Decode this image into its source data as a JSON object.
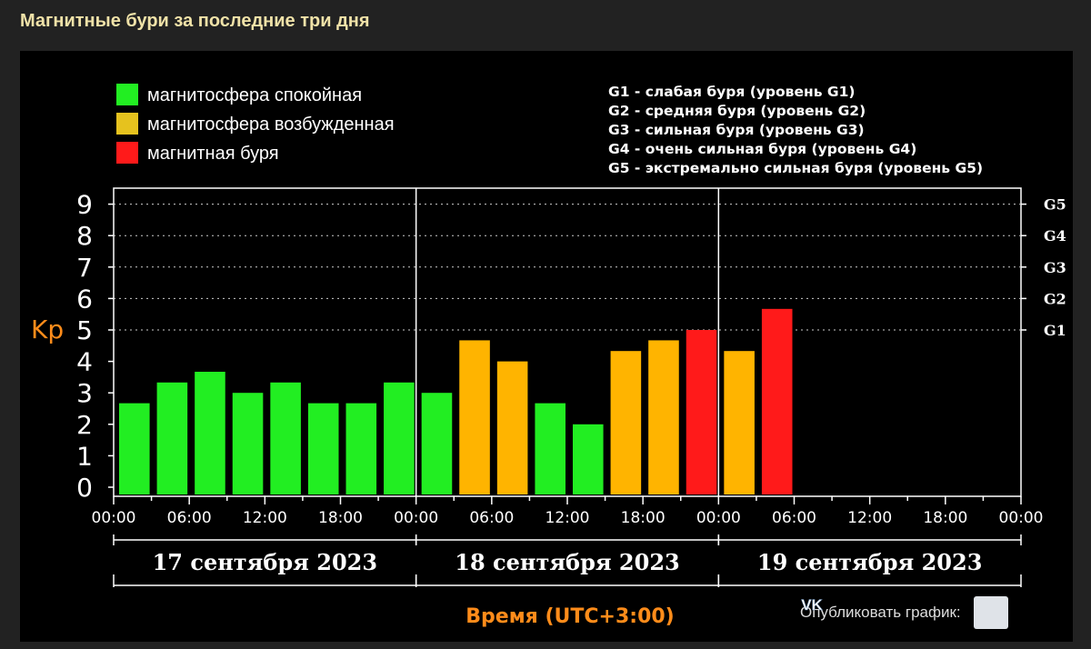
{
  "page": {
    "title": "Магнитные бури за последние три дня"
  },
  "legend": [
    {
      "label": "магнитосфера спокойная",
      "color": "#22ee22"
    },
    {
      "label": "магнитосфера возбужденная",
      "color": "#e6c21e"
    },
    {
      "label": "магнитная буря",
      "color": "#ff1a1a"
    }
  ],
  "storm_levels": [
    "G1 - слабая буря (уровень G1)",
    "G2 - средняя буря (уровень G2)",
    "G3 - сильная буря (уровень G3)",
    "G4 - очень сильная буря (уровень G4)",
    "G5 - экстремально сильная буря (уровень G5)"
  ],
  "publish": {
    "label": "Опубликовать график:",
    "icon": "vk-icon"
  },
  "colors": {
    "calm": "#22ee22",
    "excited": "#ffb400",
    "storm": "#ff1a1a",
    "accent": "#ff8c1a"
  },
  "chart_data": {
    "type": "bar",
    "ylabel": "Kp",
    "xlabel": "Время (UTC+3:00)",
    "ylim": [
      0,
      9
    ],
    "yticks": [
      0,
      1,
      2,
      3,
      4,
      5,
      6,
      7,
      8,
      9
    ],
    "right_ticks": [
      {
        "label": "G1",
        "value": 5
      },
      {
        "label": "G2",
        "value": 6
      },
      {
        "label": "G3",
        "value": 7
      },
      {
        "label": "G4",
        "value": 8
      },
      {
        "label": "G5",
        "value": 9
      }
    ],
    "x_tick_labels": [
      "00:00",
      "06:00",
      "12:00",
      "18:00",
      "00:00",
      "06:00",
      "12:00",
      "18:00",
      "00:00",
      "06:00",
      "12:00",
      "18:00",
      "00:00"
    ],
    "days": [
      "17 сентября 2023",
      "18 сентября 2023",
      "19 сентября 2023"
    ],
    "interval_hours": 3,
    "values": [
      2.67,
      3.33,
      3.67,
      3.0,
      3.33,
      2.67,
      2.67,
      3.33,
      3.0,
      4.67,
      4.0,
      2.67,
      2.0,
      4.33,
      4.67,
      5.0,
      4.33,
      5.67
    ],
    "levels": [
      "calm",
      "calm",
      "calm",
      "calm",
      "calm",
      "calm",
      "calm",
      "calm",
      "calm",
      "excited",
      "excited",
      "calm",
      "calm",
      "excited",
      "excited",
      "storm",
      "excited",
      "storm"
    ],
    "grid": "dotted at integer levels 5–9"
  }
}
